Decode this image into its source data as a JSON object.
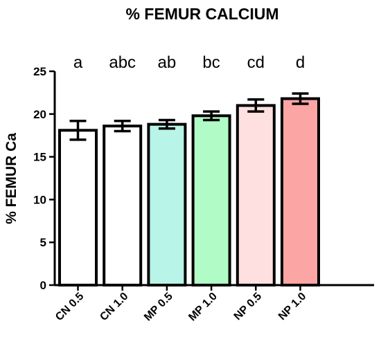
{
  "chart_data": {
    "type": "bar",
    "title": "% FEMUR CALCIUM",
    "ylabel": "% FEMUR Ca",
    "xlabel": "",
    "ylim": [
      0,
      25
    ],
    "yticks": [
      0,
      5,
      10,
      15,
      20,
      25
    ],
    "grid": false,
    "categories": [
      "CN 0.5",
      "CN 1.0",
      "MP 0.5",
      "MP 1.0",
      "NP 0.5",
      "NP 1.0"
    ],
    "values": [
      18.1,
      18.6,
      18.8,
      19.8,
      21.0,
      21.8
    ],
    "error_upper": [
      19.2,
      19.2,
      19.3,
      20.3,
      21.7,
      22.4
    ],
    "error_lower": [
      17.0,
      18.0,
      18.3,
      19.3,
      20.3,
      21.2
    ],
    "significance_letters": [
      "a",
      "abc",
      "ab",
      "bc",
      "cd",
      "d"
    ],
    "bar_colors": [
      "#ffffff",
      "#ffffff",
      "#b8f4e8",
      "#b0fbc6",
      "#ffe0e0",
      "#fca5a5"
    ],
    "edge_color": "#000000"
  }
}
